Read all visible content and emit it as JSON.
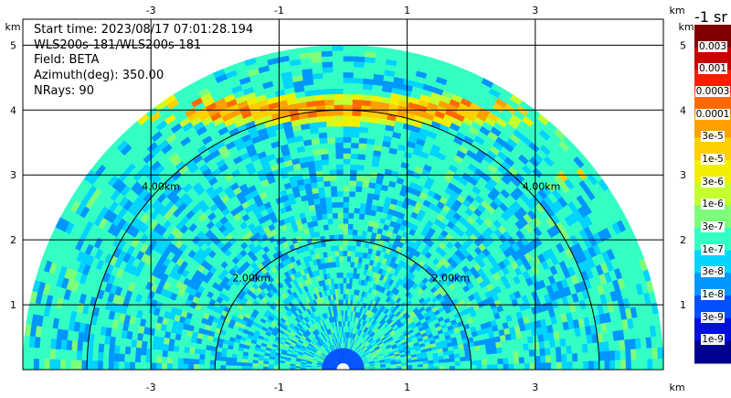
{
  "info": {
    "start_time": "Start time: 2023/08/17 07:01:28.194",
    "instrument": "WLS200s-181/WLS200s-181",
    "field": "Field: BETA",
    "azimuth": "Azimuth(deg): 350.00",
    "nrays": "NRays: 90"
  },
  "chart_data": {
    "type": "heatmap",
    "projection": "RHI half-disk (range-elevation scan)",
    "x_unit": "km",
    "y_unit": "km",
    "xlim": [
      -5.0,
      5.0
    ],
    "ylim": [
      0,
      5.4
    ],
    "x_ticks": [
      -3,
      -1,
      1,
      3
    ],
    "y_ticks": [
      1,
      2,
      3,
      4,
      5
    ],
    "max_range_km": 5.0,
    "range_rings_km": [
      2.0,
      4.0
    ],
    "ring_labels": [
      "2.00km",
      "4.00km"
    ],
    "grid": true,
    "features": {
      "strong_layer_height_km": 4.0,
      "background_level": "1e-7"
    },
    "colorbar": {
      "title": "-1 sr",
      "labels": [
        "0.003",
        "0.001",
        "0.0003",
        "0.0001",
        "3e-5",
        "1e-5",
        "3e-6",
        "1e-6",
        "3e-7",
        "1e-7",
        "3e-8",
        "1e-8",
        "3e-9",
        "1e-9"
      ],
      "colors": [
        "#800000",
        "#c80000",
        "#ff1a00",
        "#ff6a00",
        "#ffa000",
        "#ffcf00",
        "#f2f000",
        "#c4ff2e",
        "#7dff7a",
        "#33ffc4",
        "#00d4ff",
        "#0096ff",
        "#0050ff",
        "#0010dc",
        "#000090"
      ]
    }
  },
  "axes": {
    "unit_label": "km"
  }
}
